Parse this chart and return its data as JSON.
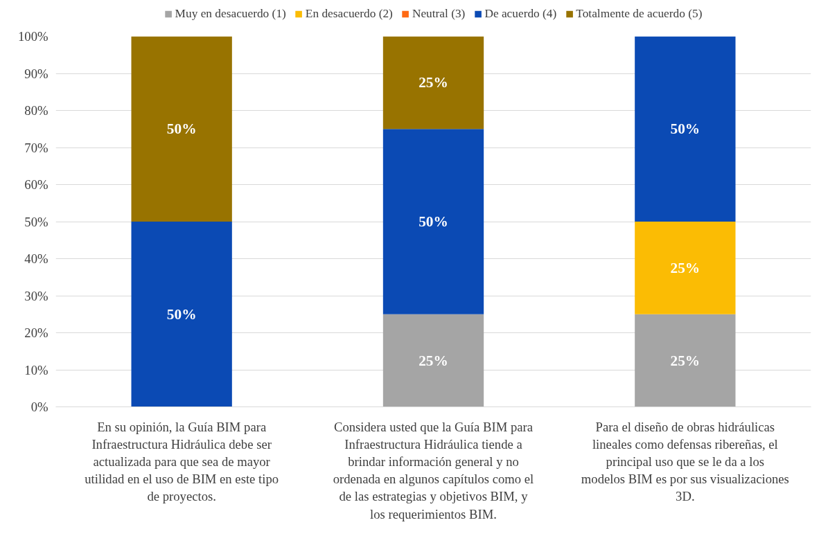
{
  "chart_data": {
    "type": "bar",
    "stacked": true,
    "categories": [
      "En su opinión, la Guía BIM para Infraestructura Hidráulica debe ser actualizada para que sea de mayor utilidad en el uso de BIM en este tipo de proyectos.",
      "Considera usted que la Guía BIM para Infraestructura Hidráulica tiende a brindar información general y no ordenada en algunos capítulos como el de las estrategias y objetivos BIM, y los requerimientos BIM.",
      "Para el diseño de obras hidráulicas lineales como defensas ribereñas, el principal uso que se le da a los modelos BIM es por sus visualizaciones 3D."
    ],
    "series": [
      {
        "name": "Muy en desacuerdo (1)",
        "color": "#a5a5a5",
        "values": [
          0,
          25,
          25
        ],
        "value_labels": [
          null,
          "25%",
          "25%"
        ]
      },
      {
        "name": "En desacuerdo (2)",
        "color": "#fbbc04",
        "values": [
          0,
          0,
          25
        ],
        "value_labels": [
          null,
          null,
          "25%"
        ]
      },
      {
        "name": "Neutral (3)",
        "color": "#ff6a13",
        "values": [
          0,
          0,
          0
        ],
        "value_labels": [
          null,
          null,
          null
        ]
      },
      {
        "name": "De acuerdo (4)",
        "color": "#0b4ab4",
        "values": [
          50,
          50,
          50
        ],
        "value_labels": [
          "50%",
          "50%",
          "50%"
        ]
      },
      {
        "name": "Totalmente de acuerdo (5)",
        "color": "#987300",
        "values": [
          50,
          25,
          0
        ],
        "value_labels": [
          "50%",
          "25%",
          null
        ]
      }
    ],
    "ylim": [
      0,
      100
    ],
    "yticks": [
      {
        "value": 0,
        "label": "0%"
      },
      {
        "value": 10,
        "label": "10%"
      },
      {
        "value": 20,
        "label": "20%"
      },
      {
        "value": 30,
        "label": "30%"
      },
      {
        "value": 40,
        "label": "40%"
      },
      {
        "value": 50,
        "label": "50%"
      },
      {
        "value": 60,
        "label": "60%"
      },
      {
        "value": 70,
        "label": "70%"
      },
      {
        "value": 80,
        "label": "80%"
      },
      {
        "value": 90,
        "label": "90%"
      },
      {
        "value": 100,
        "label": "100%"
      }
    ],
    "grid": "y",
    "legend": "top"
  }
}
